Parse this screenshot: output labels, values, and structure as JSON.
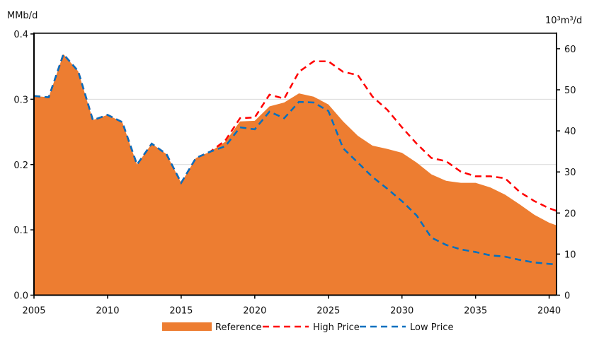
{
  "chart_data": {
    "type": "area",
    "left_axis_label": "MMb/d",
    "right_axis_label": "10³m³/d",
    "ylim": [
      0,
      0.4
    ],
    "y_ticks": [
      "0.0",
      "0.1",
      "0.2",
      "0.3",
      "0.4"
    ],
    "y2lim": [
      0,
      63.6
    ],
    "y2_ticks": [
      "0",
      "10",
      "20",
      "30",
      "40",
      "50",
      "60"
    ],
    "xlim": [
      2005,
      2040.5
    ],
    "x_ticks": [
      "2005",
      "2010",
      "2015",
      "2020",
      "2025",
      "2030",
      "2035",
      "2040"
    ],
    "grid": "horizontal",
    "legend_placement": "bottom",
    "x": [
      2005,
      2006,
      2007,
      2008,
      2009,
      2010,
      2011,
      2012,
      2013,
      2014,
      2015,
      2016,
      2017,
      2018,
      2019,
      2020,
      2021,
      2022,
      2023,
      2024,
      2025,
      2026,
      2027,
      2028,
      2029,
      2030,
      2031,
      2032,
      2033,
      2034,
      2035,
      2036,
      2037,
      2038,
      2039,
      2040,
      2040.5
    ],
    "series": [
      {
        "name": "Reference",
        "style": "area",
        "color": "#ED7D31",
        "values": [
          0.305,
          0.303,
          0.369,
          0.343,
          0.268,
          0.276,
          0.265,
          0.2,
          0.232,
          0.216,
          0.172,
          0.21,
          0.22,
          0.235,
          0.266,
          0.267,
          0.289,
          0.295,
          0.309,
          0.304,
          0.292,
          0.266,
          0.244,
          0.229,
          0.224,
          0.218,
          0.203,
          0.185,
          0.175,
          0.172,
          0.172,
          0.165,
          0.154,
          0.139,
          0.123,
          0.111,
          0.107
        ]
      },
      {
        "name": "High Price",
        "style": "dashed",
        "color": "#FF0000",
        "values": [
          0.305,
          0.303,
          0.369,
          0.343,
          0.268,
          0.276,
          0.265,
          0.2,
          0.232,
          0.216,
          0.172,
          0.21,
          0.22,
          0.237,
          0.271,
          0.272,
          0.307,
          0.301,
          0.342,
          0.358,
          0.358,
          0.342,
          0.337,
          0.304,
          0.284,
          0.257,
          0.232,
          0.21,
          0.205,
          0.189,
          0.182,
          0.182,
          0.179,
          0.158,
          0.144,
          0.133,
          0.129
        ]
      },
      {
        "name": "Low Price",
        "style": "dashed",
        "color": "#0070C0",
        "values": [
          0.305,
          0.303,
          0.369,
          0.343,
          0.268,
          0.276,
          0.265,
          0.2,
          0.232,
          0.216,
          0.172,
          0.21,
          0.22,
          0.228,
          0.257,
          0.254,
          0.281,
          0.271,
          0.296,
          0.295,
          0.282,
          0.225,
          0.203,
          0.181,
          0.163,
          0.144,
          0.122,
          0.088,
          0.077,
          0.07,
          0.066,
          0.061,
          0.059,
          0.054,
          0.05,
          0.048,
          0.047
        ]
      }
    ]
  }
}
